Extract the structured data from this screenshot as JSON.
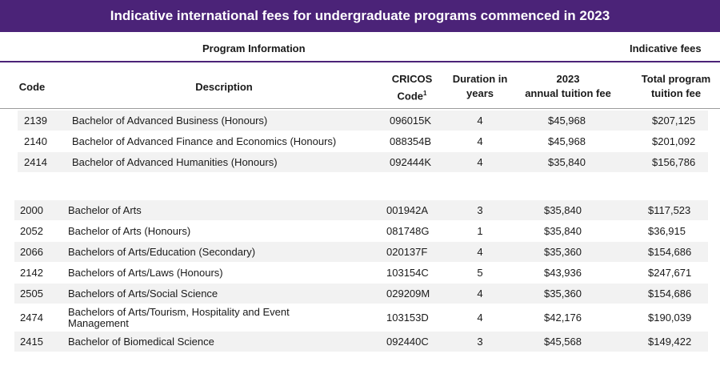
{
  "title": "Indicative international fees for undergraduate programs commenced in 2023",
  "groups": {
    "program_info": "Program Information",
    "indicative_fees": "Indicative fees"
  },
  "columns": {
    "code": "Code",
    "description": "Description",
    "cricos_line1": "CRICOS",
    "cricos_line2": "Code",
    "cricos_sup": "1",
    "duration_line1": "Duration in",
    "duration_line2": "years",
    "annual_line1": "2023",
    "annual_line2": "annual tuition fee",
    "total_line1": "Total program",
    "total_line2": "tuition fee"
  },
  "section1": [
    {
      "code": "2139",
      "description": "Bachelor of Advanced Business (Honours)",
      "cricos": "096015K",
      "duration": "4",
      "annual": "$45,968",
      "total": "$207,125"
    },
    {
      "code": "2140",
      "description": "Bachelor of Advanced Finance and Economics (Honours)",
      "cricos": "088354B",
      "duration": "4",
      "annual": "$45,968",
      "total": "$201,092"
    },
    {
      "code": "2414",
      "description": "Bachelor of Advanced Humanities (Honours)",
      "cricos": "092444K",
      "duration": "4",
      "annual": "$35,840",
      "total": "$156,786"
    }
  ],
  "section2": [
    {
      "code": "2000",
      "description": "Bachelor of Arts",
      "cricos": "001942A",
      "duration": "3",
      "annual": "$35,840",
      "total": "$117,523"
    },
    {
      "code": "2052",
      "description": "Bachelor of Arts (Honours)",
      "cricos": "081748G",
      "duration": "1",
      "annual": "$35,840",
      "total": "$36,915"
    },
    {
      "code": "2066",
      "description": "Bachelors of Arts/Education (Secondary)",
      "cricos": "020137F",
      "duration": "4",
      "annual": "$35,360",
      "total": "$154,686"
    },
    {
      "code": "2142",
      "description": "Bachelors of Arts/Laws (Honours)",
      "cricos": "103154C",
      "duration": "5",
      "annual": "$43,936",
      "total": "$247,671"
    },
    {
      "code": "2505",
      "description": "Bachelors of Arts/Social Science",
      "cricos": "029209M",
      "duration": "4",
      "annual": "$35,360",
      "total": "$154,686"
    },
    {
      "code": "2474",
      "description": "Bachelors of Arts/Tourism, Hospitality and Event Management",
      "cricos": "103153D",
      "duration": "4",
      "annual": "$42,176",
      "total": "$190,039"
    },
    {
      "code": "2415",
      "description": "Bachelor of Biomedical Science",
      "cricos": "092440C",
      "duration": "3",
      "annual": "$45,568",
      "total": "$149,422"
    }
  ]
}
